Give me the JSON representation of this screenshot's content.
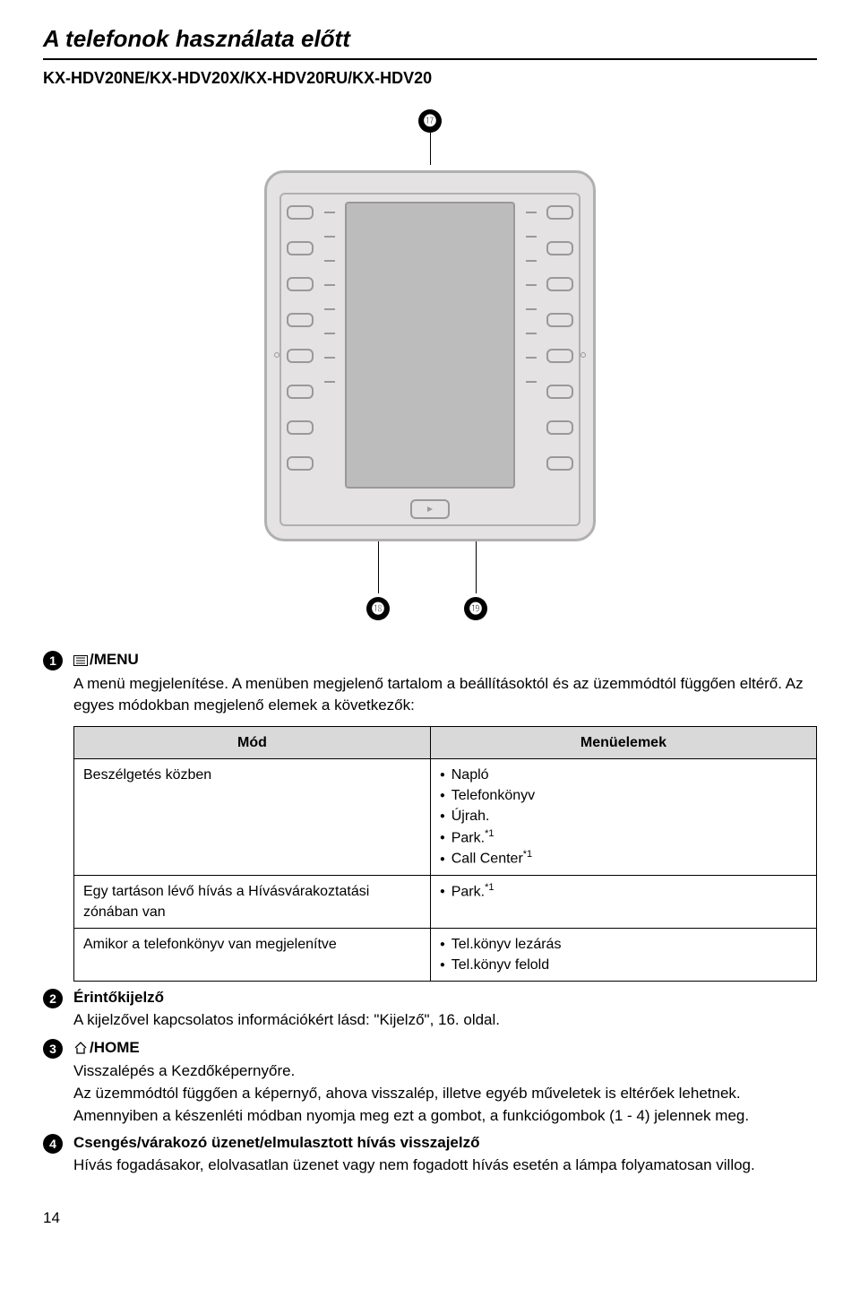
{
  "header": {
    "section_title": "A telefonok használata előtt",
    "model_line": "KX-HDV20NE/KX-HDV20X/KX-HDV20RU/KX-HDV20"
  },
  "callouts": {
    "top": "⓱",
    "bl": "⓲",
    "br": "⓳"
  },
  "items": {
    "i1": {
      "num": "1",
      "label": "/MENU",
      "desc": "A menü megjelenítése. A menüben megjelenő tartalom a beállításoktól és az üzemmódtól függően eltérő. Az egyes módokban megjelenő elemek a következők:"
    },
    "i2": {
      "num": "2",
      "label": "Érintőkijelző",
      "desc": "A kijelzővel kapcsolatos információkért lásd:  \"Kijelző\", 16. oldal."
    },
    "i3": {
      "num": "3",
      "label": "/HOME",
      "line1": "Visszalépés a Kezdőképernyőre.",
      "line2": "Az üzemmódtól függően a képernyő, ahova visszalép, illetve egyéb műveletek is eltérőek lehetnek. Amennyiben a készenléti módban nyomja meg ezt a gombot, a funkciógombok (1 - 4) jelennek meg."
    },
    "i4": {
      "num": "4",
      "label": "Csengés/várakozó üzenet/elmulasztott hívás visszajelző",
      "desc": "Hívás fogadásakor, elolvasatlan üzenet vagy nem fogadott hívás esetén a lámpa folyamatosan villog."
    }
  },
  "table": {
    "head_mode": "Mód",
    "head_menu": "Menüelemek",
    "rows": [
      {
        "mode": "Beszélgetés közben",
        "menu": [
          "Napló",
          "Telefonkönyv",
          "Újrah.",
          "Park.",
          "Call Center"
        ],
        "sup": {
          "3": "*1",
          "4": "*1"
        }
      },
      {
        "mode": "Egy tartáson lévő hívás a Hívásvárakoztatási zónában van",
        "menu": [
          "Park."
        ],
        "sup": {
          "0": "*1"
        }
      },
      {
        "mode": "Amikor a telefonkönyv van megjelenítve",
        "menu": [
          "Tel.könyv lezárás",
          "Tel.könyv felold"
        ]
      }
    ]
  },
  "page_number": "14"
}
